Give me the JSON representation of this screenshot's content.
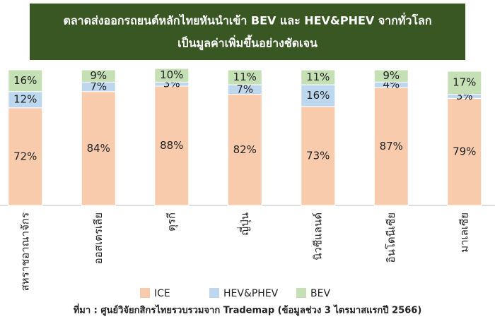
{
  "chart_data": {
    "type": "stacked_bar",
    "title": [
      "ตลาดส่งออกรถยนต์หลักไทยหันนำเข้า BEV และ HEV&PHEV จากทั่วโลก",
      "เป็นมูลค่าเพิ่มขึ้นอย่างชัดเจน"
    ],
    "categories": [
      "สหราชอาณาจักร",
      "ออสเตรเลีย",
      "ตุรกี",
      "ญี่ปุ่น",
      "นิวซีแลนด์",
      "อินโดนีเซีย",
      "มาเลเซีย"
    ],
    "series": [
      {
        "name": "ICE",
        "color": "#f8cbad",
        "values": [
          72,
          84,
          88,
          82,
          73,
          87,
          79
        ],
        "value_labels": [
          "72%",
          "84%",
          "88%",
          "82%",
          "73%",
          "87%",
          "79%"
        ]
      },
      {
        "name": "HEV&PHEV",
        "color": "#bdd7ee",
        "values": [
          12,
          7,
          3,
          7,
          16,
          4,
          3
        ],
        "value_labels": [
          "12%",
          "7%",
          "3%",
          "7%",
          "16%",
          "4%",
          "3%"
        ]
      },
      {
        "name": "BEV",
        "color": "#c5e0b4",
        "values": [
          16,
          9,
          10,
          11,
          11,
          9,
          17
        ],
        "value_labels": [
          "16%",
          "9%",
          "10%",
          "11%",
          "11%",
          "9%",
          "17%"
        ]
      }
    ],
    "ylim": [
      0,
      100
    ],
    "source": "ที่มา : ศูนย์วิจัยกสิกรไทยรวบรวมจาก Trademap (ข้อมูลช่วง 3 ไตรมาสแรกปี 2566)"
  }
}
